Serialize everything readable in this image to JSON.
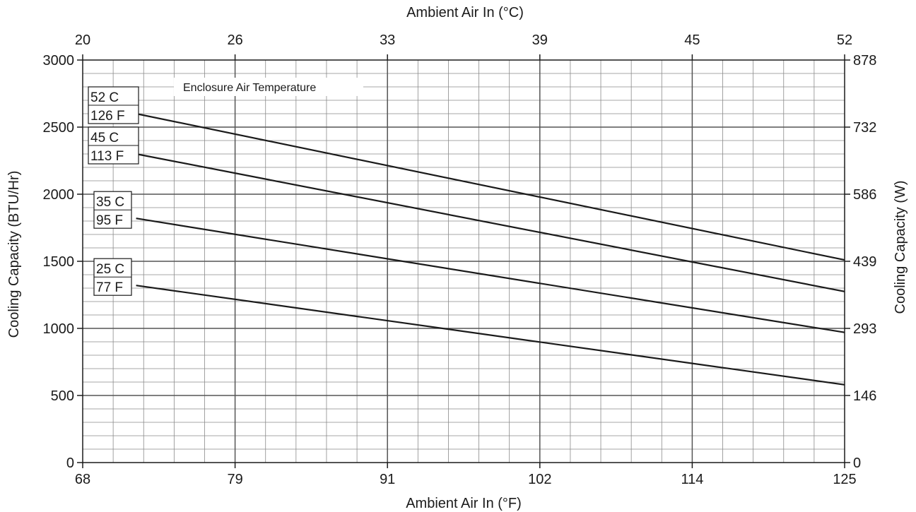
{
  "chart_data": {
    "type": "line",
    "xlabel": "Ambient Air In (°F)",
    "x2label": "Ambient Air In (°C)",
    "ylabel": "Cooling Capacity (BTU/Hr)",
    "y2label": "Cooling Capacity (W)",
    "legend_title": "Enclosure Air Temperature",
    "xlim": [
      68,
      125
    ],
    "ylim": [
      0,
      3000
    ],
    "x_ticks": [
      "68",
      "79",
      "91",
      "102",
      "114",
      "125"
    ],
    "x2_ticks": [
      "20",
      "26",
      "33",
      "39",
      "45",
      "52"
    ],
    "y_ticks": [
      "0",
      "500",
      "1000",
      "1500",
      "2000",
      "2500",
      "3000"
    ],
    "y2_ticks": [
      "0",
      "146",
      "293",
      "439",
      "586",
      "732",
      "878"
    ],
    "grid": true,
    "series": [
      {
        "name_c": "52 C",
        "name_f": "126 F",
        "x": [
          72,
          125
        ],
        "y": [
          2600,
          1510
        ]
      },
      {
        "name_c": "45 C",
        "name_f": "113 F",
        "x": [
          72,
          125
        ],
        "y": [
          2300,
          1275
        ]
      },
      {
        "name_c": "35 C",
        "name_f": "95 F",
        "x": [
          72,
          125
        ],
        "y": [
          1820,
          970
        ]
      },
      {
        "name_c": "25 C",
        "name_f": "77 F",
        "x": [
          72,
          125
        ],
        "y": [
          1320,
          580
        ]
      }
    ],
    "colors": {
      "line": "#1a1a1a",
      "grid": "#555555",
      "minor_grid": "#8a8a8a"
    }
  }
}
